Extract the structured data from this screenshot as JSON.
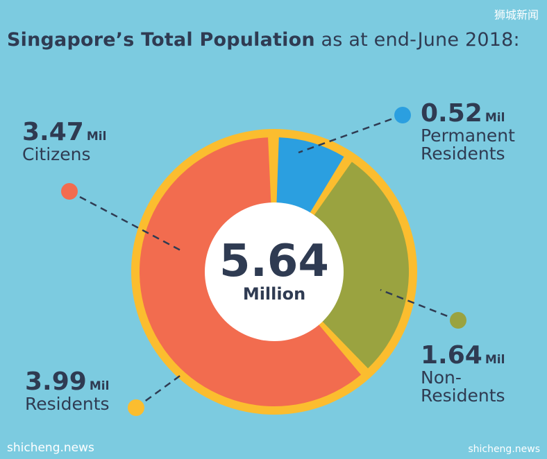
{
  "title": {
    "bold": "Singapore’s Total Population",
    "rest": " as at end-June 2018:"
  },
  "watermarks": {
    "top_right": "狮城新闻",
    "bottom_left": "shicheng.news",
    "bottom_right": "shicheng.news"
  },
  "center": {
    "value": "5.64",
    "unit": "Million"
  },
  "labels": {
    "citizens": {
      "value": "3.47",
      "unit": "Mil",
      "desc": "Citizens"
    },
    "pr": {
      "value": "0.52",
      "unit": "Mil",
      "desc1": "Permanent",
      "desc2": "Residents"
    },
    "nonres": {
      "value": "1.64",
      "unit": "Mil",
      "desc1": "Non-",
      "desc2": "Residents"
    },
    "residents": {
      "value": "3.99",
      "unit": "Mil",
      "desc": "Residents"
    }
  },
  "colors": {
    "background": "#7ccbe0",
    "citizens": "#f26c4f",
    "permanent_residents": "#2b9fe0",
    "non_residents": "#9aa340",
    "residents_ring": "#fbbd2f",
    "center": "#ffffff"
  },
  "chart_data": {
    "type": "pie",
    "title": "Singapore’s Total Population as at end-June 2018:",
    "total": 5.64,
    "slices": [
      {
        "name": "Permanent Residents",
        "value": 0.52,
        "color": "#2b9fe0"
      },
      {
        "name": "Non-Residents",
        "value": 1.64,
        "color": "#9aa340"
      },
      {
        "name": "Citizens",
        "value": 3.47,
        "color": "#f26c4f"
      }
    ],
    "group": {
      "name": "Residents",
      "value": 3.99,
      "members": [
        "Citizens",
        "Permanent Residents"
      ],
      "color": "#fbbd2f"
    }
  }
}
